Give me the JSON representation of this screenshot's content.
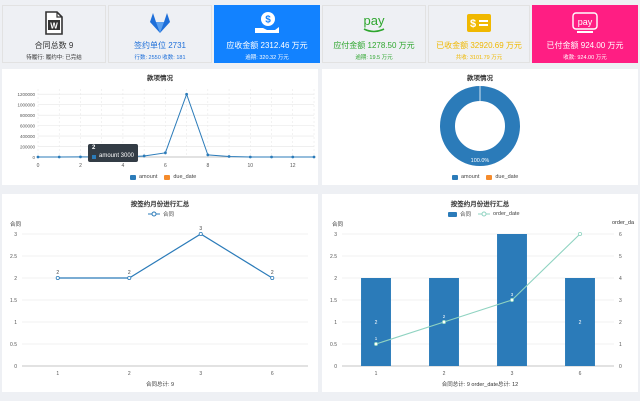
{
  "cards": [
    {
      "title": "合同总数 9",
      "sub": "待履行: 履约中: 已完结",
      "bg": "#ffffff",
      "color": "#333333",
      "icon": "word-document-icon"
    },
    {
      "title": "签约单位 2731",
      "sub": "行数: 2550 收数: 181",
      "bg": "#ffffff",
      "color": "#1e6fd9",
      "icon": "gitlab-fox-icon"
    },
    {
      "title": "应收金额 2312.46 万元",
      "sub": "逾期: 320.32 万元",
      "bg": "#1282ff",
      "color": "#ffffff",
      "icon": "dollar-hand-icon"
    },
    {
      "title": "应付金额 1278.50 万元",
      "sub": "逾期: 19.5 万元",
      "bg": "#ffffff",
      "color": "#2ea62e",
      "icon": "amazon-pay-icon"
    },
    {
      "title": "已收金额 32920.69 万元",
      "sub": "共收: 3101.79 万元",
      "bg": "#ffffff",
      "color": "#f0b800",
      "icon": "dollar-card-icon"
    },
    {
      "title": "已付金额 924.00 万元",
      "sub": "收款: 924.00 万元",
      "bg": "#ff1e83",
      "color": "#ffffff",
      "icon": "apple-pay-icon"
    }
  ],
  "icon_text": {
    "word": "W",
    "dollar": "$",
    "pay": "pay"
  },
  "panels": {
    "p1": {
      "title": "款项情况",
      "legend": [
        "amount",
        "due_date"
      ]
    },
    "p2": {
      "title": "款项情况",
      "legend": [
        "amount",
        "due_date"
      ],
      "center_label": "100.0%"
    },
    "p3": {
      "title": "按签约月份进行汇总",
      "legend": [
        "合同"
      ],
      "ylabel": "合同",
      "footer": "合同总计: 9"
    },
    "p4": {
      "title": "按签约月份进行汇总",
      "legend": [
        "合同",
        "order_date"
      ],
      "ylabel_left": "合同",
      "ylabel_right": "order_da",
      "footer": "合同总计: 9  order_date总计: 12"
    }
  },
  "tooltip": {
    "title": "2",
    "label": "amount",
    "value": "3000"
  },
  "colors": {
    "blue": "#2b7bb9",
    "orange": "#f58b2c",
    "teal": "#8fd3c1",
    "grid": "#e6e6e6"
  },
  "chart_data": [
    {
      "type": "line",
      "title": "款项情况",
      "x": [
        0,
        1,
        2,
        3,
        4,
        5,
        6,
        7,
        8,
        9,
        10,
        11,
        12,
        13
      ],
      "x_ticks": [
        "0",
        "2",
        "4",
        "6",
        "8",
        "10",
        "12"
      ],
      "y_ticks": [
        "0",
        "200000",
        "400000",
        "600000",
        "800000",
        "1000000",
        "1200000"
      ],
      "ylim": [
        0,
        1300000
      ],
      "series": [
        {
          "name": "amount",
          "values": [
            0,
            0,
            3000,
            0,
            0,
            20000,
            80000,
            1200000,
            40000,
            10000,
            0,
            0,
            0,
            0
          ]
        }
      ]
    },
    {
      "type": "pie",
      "title": "款项情况",
      "series": [
        {
          "name": "amount",
          "values": [
            100
          ]
        }
      ]
    },
    {
      "type": "line",
      "title": "按签约月份进行汇总",
      "categories": [
        "1",
        "2",
        "3",
        "6"
      ],
      "y_ticks": [
        "0",
        "0.5",
        "1",
        "1.5",
        "2",
        "2.5",
        "3"
      ],
      "ylim": [
        0,
        3
      ],
      "series": [
        {
          "name": "合同",
          "values": [
            2,
            2,
            3,
            2
          ]
        }
      ]
    },
    {
      "type": "bar",
      "title": "按签约月份进行汇总",
      "categories": [
        "1",
        "2",
        "3",
        "6"
      ],
      "y_ticks": [
        "0",
        "0.5",
        "1",
        "1.5",
        "2",
        "2.5",
        "3"
      ],
      "y2_ticks": [
        "0",
        "1",
        "2",
        "3",
        "4",
        "5",
        "6"
      ],
      "ylim": [
        0,
        3
      ],
      "y2lim": [
        0,
        6
      ],
      "series": [
        {
          "name": "合同",
          "values": [
            2,
            2,
            3,
            2
          ]
        },
        {
          "name": "order_date",
          "values": [
            1,
            2,
            3,
            6
          ]
        }
      ]
    }
  ]
}
